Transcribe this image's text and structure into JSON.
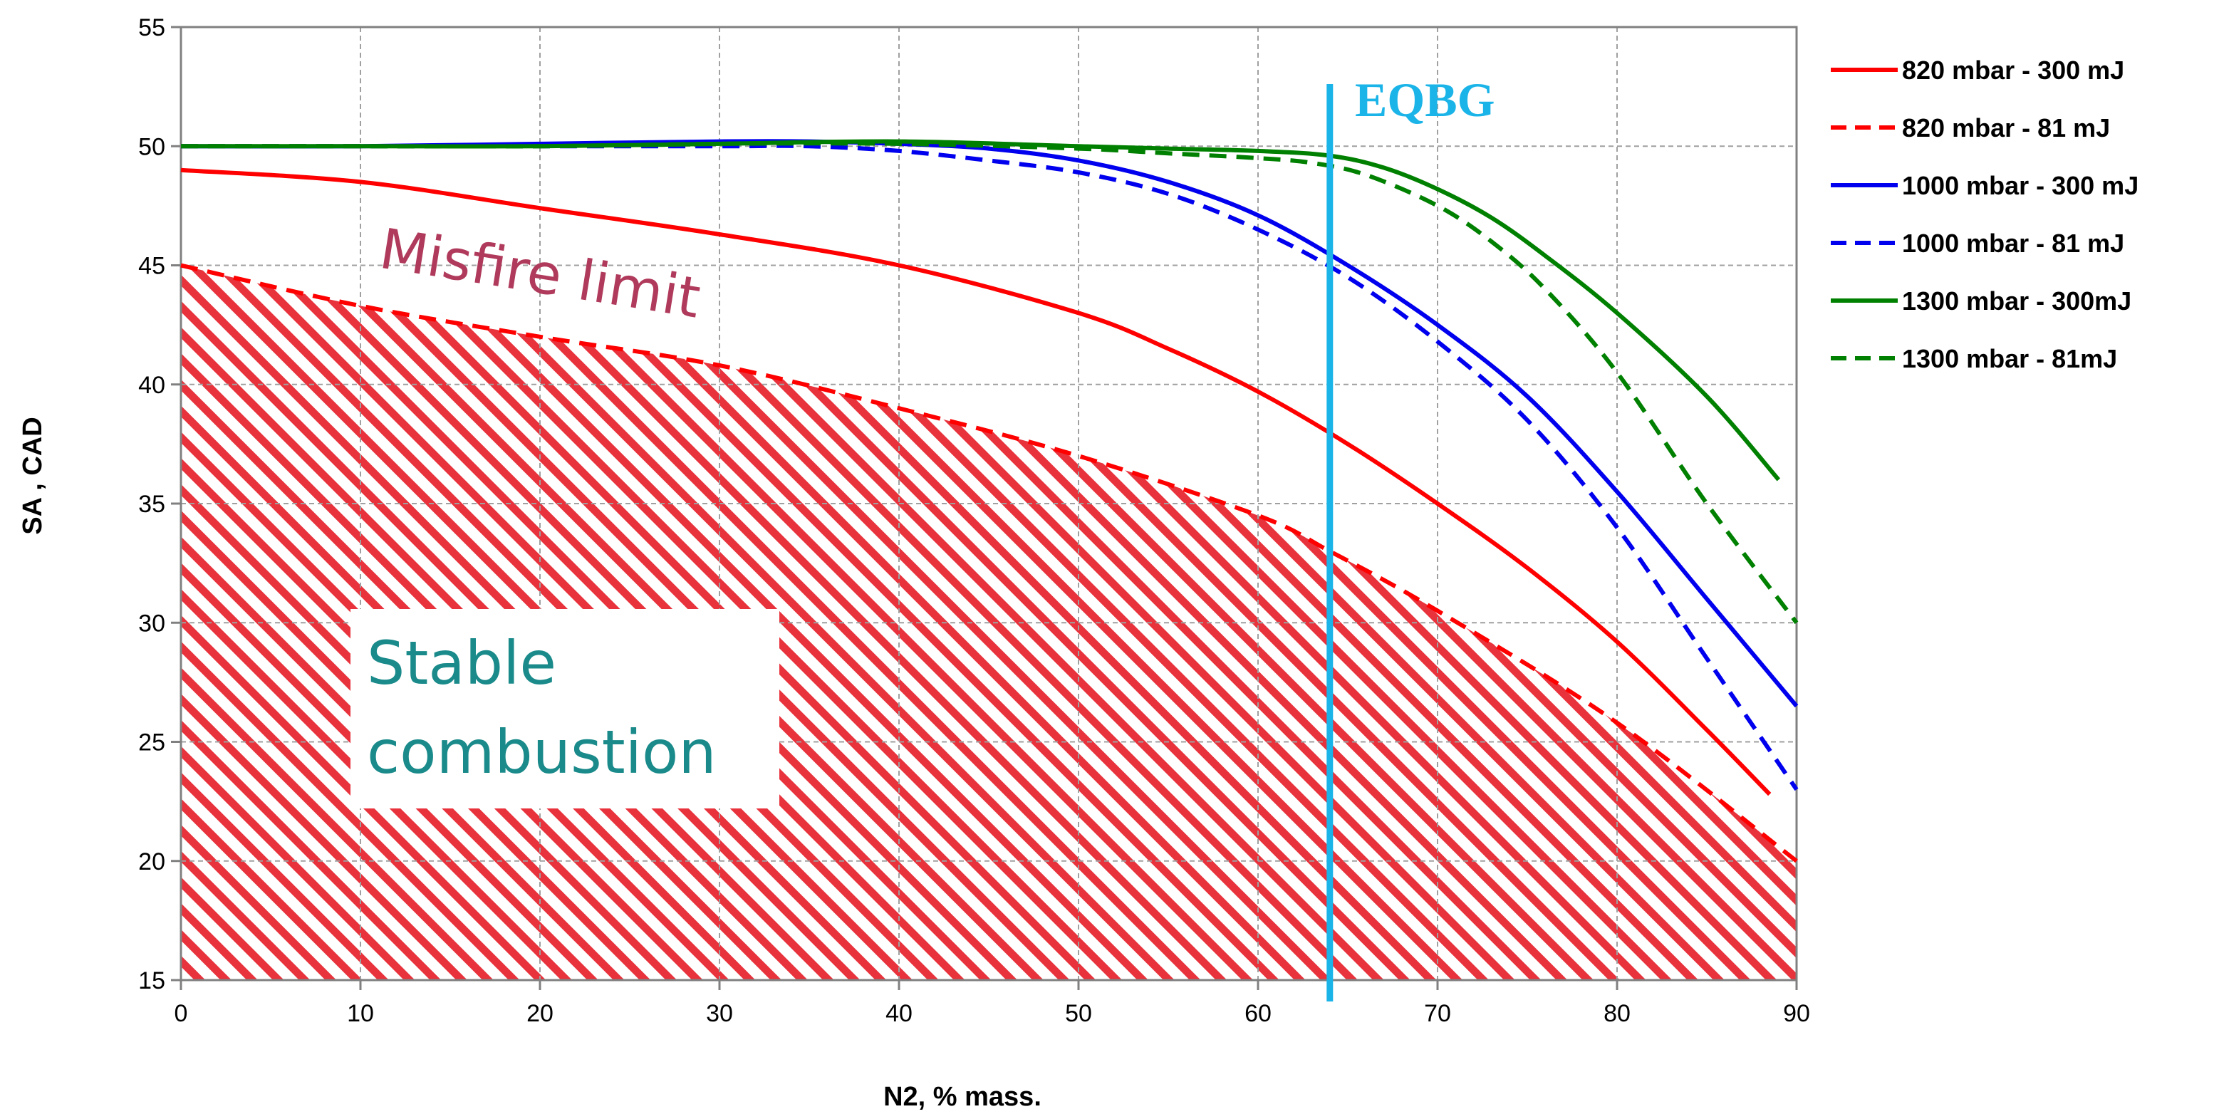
{
  "chart_data": {
    "type": "line",
    "xlabel": "N2, % mass.",
    "ylabel": "SA , CAD",
    "xlim": [
      0,
      90
    ],
    "ylim": [
      15,
      55
    ],
    "xticks": [
      0,
      10,
      20,
      30,
      40,
      50,
      60,
      70,
      80,
      90
    ],
    "yticks": [
      15,
      20,
      25,
      30,
      35,
      40,
      45,
      50,
      55
    ],
    "grid": true,
    "legend_position": "right",
    "series": [
      {
        "name": "820 mbar - 300 mJ",
        "color": "#ff0000",
        "dash": "solid",
        "x": [
          0,
          10,
          20,
          30,
          40,
          50,
          55,
          60,
          65,
          70,
          75,
          80,
          85,
          88.5
        ],
        "y": [
          49,
          48.5,
          47.4,
          46.3,
          45,
          43,
          41.5,
          39.7,
          37.5,
          35,
          32.3,
          29.2,
          25.5,
          22.8
        ]
      },
      {
        "name": "820 mbar - 81 mJ",
        "color": "#ff0000",
        "dash": "dashed",
        "limit": true,
        "x": [
          0,
          10,
          20,
          30,
          40,
          50,
          60,
          64,
          70,
          80,
          90
        ],
        "y": [
          45,
          43.3,
          42,
          40.8,
          39,
          37,
          34.5,
          33,
          30.5,
          25.8,
          20
        ]
      },
      {
        "name": "1000 mbar - 300 mJ",
        "color": "#0000ee",
        "dash": "solid",
        "x": [
          0,
          10,
          20,
          30,
          35,
          40,
          45,
          50,
          55,
          60,
          65,
          70,
          75,
          80,
          85,
          90
        ],
        "y": [
          50,
          50,
          50.1,
          50.2,
          50.2,
          50.1,
          49.9,
          49.4,
          48.5,
          47.1,
          45,
          42.5,
          39.5,
          35.5,
          31,
          26.5
        ]
      },
      {
        "name": "1000 mbar - 81 mJ",
        "color": "#0000ee",
        "dash": "dashed",
        "x": [
          0,
          10,
          20,
          30,
          35,
          40,
          45,
          50,
          55,
          60,
          65,
          70,
          75,
          80,
          85,
          90
        ],
        "y": [
          50,
          50,
          50,
          50,
          50,
          49.8,
          49.4,
          48.9,
          48,
          46.5,
          44.5,
          41.8,
          38.5,
          34,
          28.5,
          23
        ]
      },
      {
        "name": "1300 mbar - 300mJ",
        "color": "#008000",
        "dash": "solid",
        "x": [
          0,
          10,
          20,
          30,
          40,
          50,
          55,
          60,
          64,
          67,
          70,
          73,
          76,
          80,
          85,
          89
        ],
        "y": [
          50,
          50,
          50,
          50.1,
          50.2,
          50,
          49.9,
          49.8,
          49.6,
          49.1,
          48.2,
          47,
          45.4,
          43,
          39.5,
          36
        ]
      },
      {
        "name": "1300 mbar - 81mJ",
        "color": "#008000",
        "dash": "dashed",
        "x": [
          0,
          10,
          20,
          30,
          40,
          50,
          55,
          60,
          63,
          66,
          70,
          73,
          76,
          80,
          85,
          90
        ],
        "y": [
          50,
          50,
          50,
          50.1,
          50.1,
          49.9,
          49.7,
          49.5,
          49.3,
          48.8,
          47.5,
          46,
          44,
          40.5,
          35,
          30
        ]
      }
    ],
    "vline": {
      "x": 64,
      "label": "EQBG",
      "color": "#1ab4e8"
    },
    "annotations": {
      "misfire": "Misfire limit",
      "stable_line1": "Stable",
      "stable_line2": "combustion"
    }
  }
}
